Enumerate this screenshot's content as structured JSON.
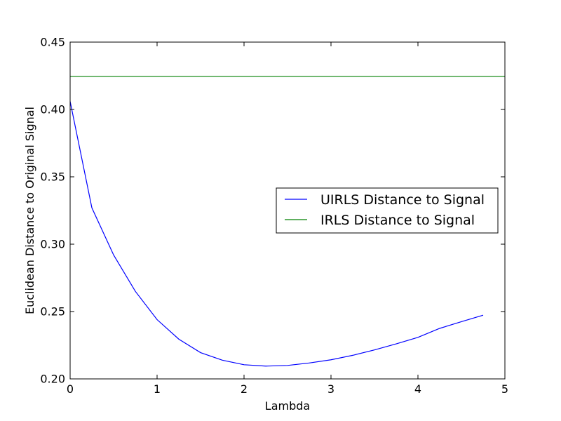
{
  "chart_data": {
    "type": "line",
    "title": "",
    "xlabel": "Lambda",
    "ylabel": "Euclidean Distance to Original Signal",
    "xlim": [
      0,
      5
    ],
    "ylim": [
      0.2,
      0.45
    ],
    "xticks": [
      0,
      1,
      2,
      3,
      4,
      5
    ],
    "xtick_labels": [
      "0",
      "1",
      "2",
      "3",
      "4",
      "5"
    ],
    "yticks": [
      0.2,
      0.25,
      0.3,
      0.35,
      0.4,
      0.45
    ],
    "ytick_labels": [
      "0.20",
      "0.25",
      "0.30",
      "0.35",
      "0.40",
      "0.45"
    ],
    "grid": false,
    "legend_position": "center-right",
    "series": [
      {
        "name": "UIRLS Distance to Signal",
        "color": "#0000ff",
        "x": [
          0,
          0.25,
          0.5,
          0.75,
          1.0,
          1.25,
          1.5,
          1.75,
          2.0,
          2.25,
          2.5,
          2.75,
          3.0,
          3.25,
          3.5,
          3.75,
          4.0,
          4.25,
          4.5,
          4.75
        ],
        "y": [
          0.406,
          0.327,
          0.292,
          0.265,
          0.244,
          0.2295,
          0.2195,
          0.2139,
          0.2105,
          0.2095,
          0.21,
          0.2118,
          0.2142,
          0.2175,
          0.2215,
          0.226,
          0.2308,
          0.2375,
          0.2425,
          0.2473
        ]
      },
      {
        "name": "IRLS Distance to Signal",
        "color": "#008000",
        "x": [
          0,
          5
        ],
        "y": [
          0.4245,
          0.4245
        ]
      }
    ]
  }
}
